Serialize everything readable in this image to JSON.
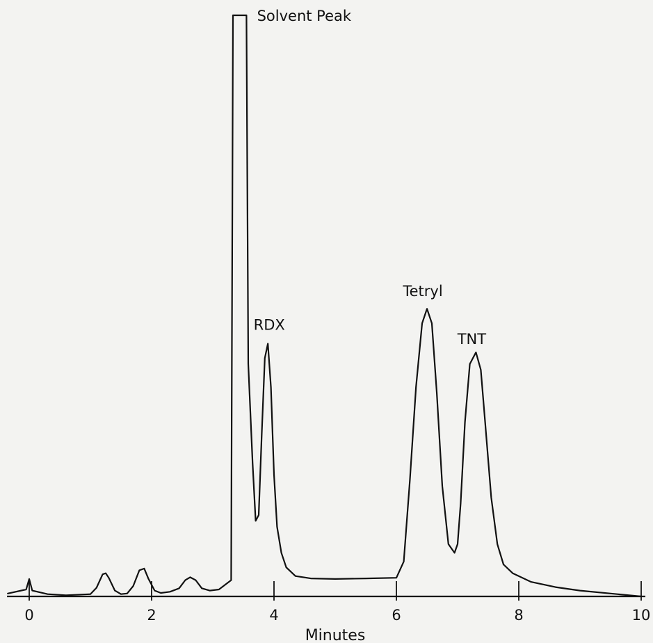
{
  "chart_data": {
    "type": "line",
    "title": "",
    "xlabel": "Minutes",
    "ylabel": "",
    "xlim": [
      0,
      10
    ],
    "ylim": [
      0,
      1
    ],
    "x_ticks": [
      0,
      2,
      4,
      6,
      8,
      10
    ],
    "x_tick_labels": [
      "0",
      "2",
      "4",
      "6",
      "8",
      "10"
    ],
    "grid": false,
    "legend": "none",
    "series": [
      {
        "x": [
          -0.35,
          -0.05,
          0.0,
          0.05,
          0.3,
          0.6,
          1.0,
          1.1,
          1.2,
          1.25,
          1.3,
          1.4,
          1.5,
          1.6,
          1.7,
          1.8,
          1.88,
          1.95,
          2.05,
          2.15,
          2.3,
          2.45,
          2.55,
          2.63,
          2.72,
          2.82,
          2.95,
          3.1,
          3.3,
          3.33,
          3.55,
          3.58,
          3.65,
          3.7,
          3.75,
          3.8,
          3.85,
          3.9,
          3.95,
          4.0,
          4.05,
          4.12,
          4.2,
          4.35,
          4.6,
          5.0,
          5.5,
          6.0,
          6.12,
          6.22,
          6.32,
          6.42,
          6.5,
          6.58,
          6.66,
          6.75,
          6.85,
          6.95,
          7.0,
          7.05,
          7.12,
          7.2,
          7.3,
          7.38,
          7.45,
          7.55,
          7.65,
          7.75,
          7.9,
          8.2,
          8.6,
          9.0,
          9.5,
          10.0
        ],
        "y": [
          0.005,
          0.012,
          0.03,
          0.01,
          0.004,
          0.002,
          0.004,
          0.015,
          0.038,
          0.04,
          0.032,
          0.01,
          0.004,
          0.005,
          0.018,
          0.045,
          0.048,
          0.03,
          0.01,
          0.006,
          0.008,
          0.014,
          0.028,
          0.033,
          0.028,
          0.014,
          0.01,
          0.012,
          0.028,
          1.0,
          1.0,
          0.4,
          0.23,
          0.13,
          0.14,
          0.28,
          0.41,
          0.435,
          0.36,
          0.21,
          0.12,
          0.075,
          0.05,
          0.035,
          0.031,
          0.03,
          0.031,
          0.032,
          0.06,
          0.2,
          0.36,
          0.47,
          0.495,
          0.47,
          0.35,
          0.19,
          0.09,
          0.075,
          0.09,
          0.16,
          0.3,
          0.4,
          0.42,
          0.39,
          0.3,
          0.17,
          0.09,
          0.055,
          0.04,
          0.025,
          0.016,
          0.01,
          0.005,
          0.0
        ]
      }
    ],
    "annotations": [
      {
        "text": "Solvent Peak",
        "x": 3.45,
        "y": 1.0
      },
      {
        "text": "RDX",
        "x": 3.9,
        "y": 0.435
      },
      {
        "text": "Tetryl",
        "x": 6.5,
        "y": 0.495
      },
      {
        "text": "TNT",
        "x": 7.3,
        "y": 0.42
      }
    ]
  }
}
